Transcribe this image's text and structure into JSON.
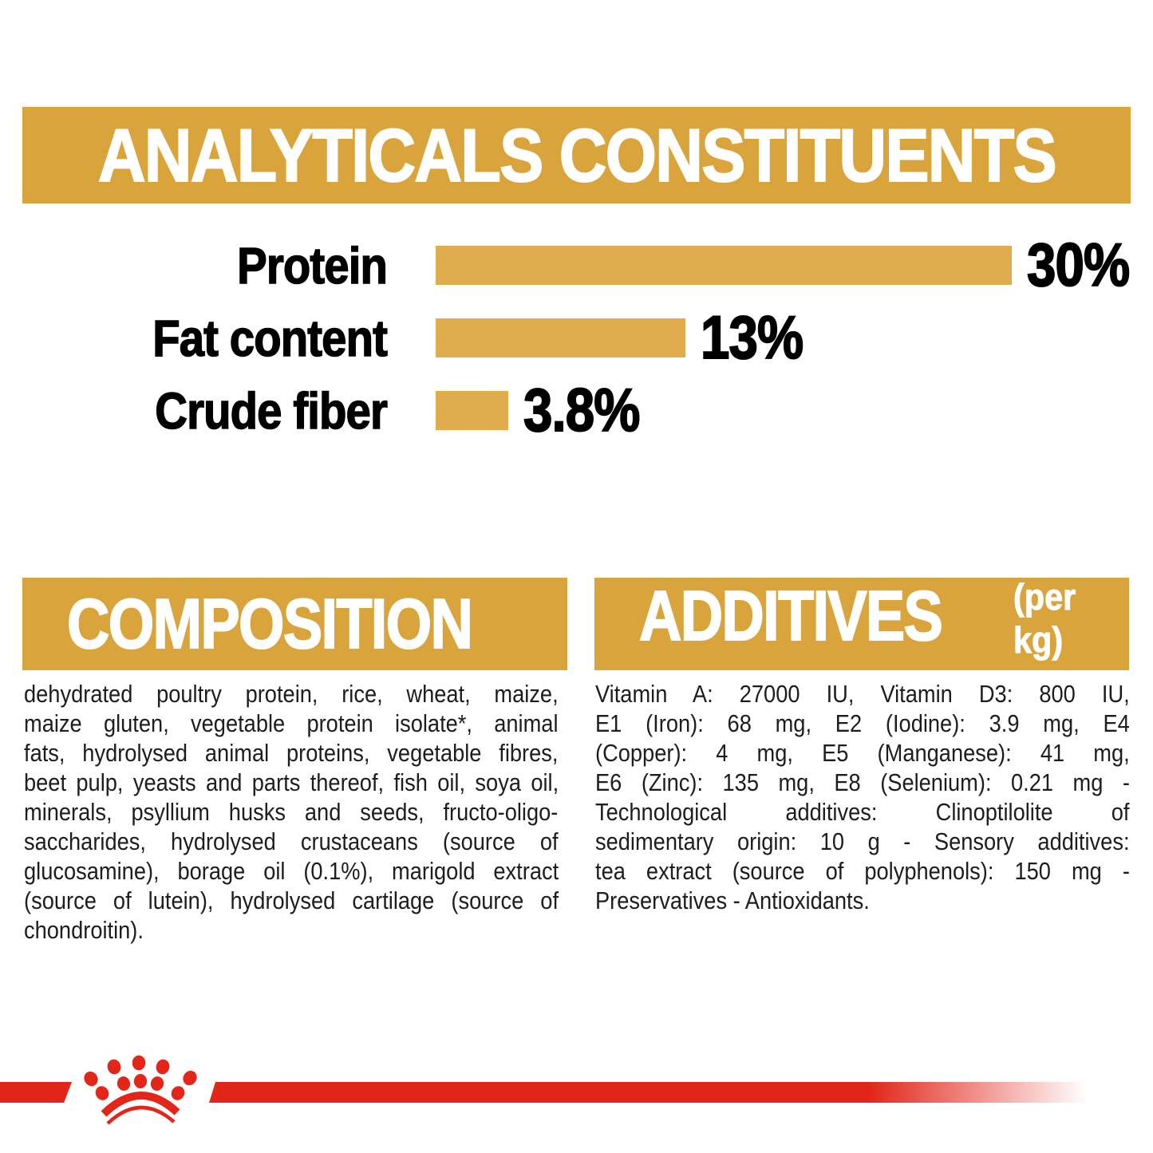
{
  "header": {
    "title": "ANALYTICALS CONSTITUENTS"
  },
  "chart_data": {
    "type": "bar",
    "orientation": "horizontal",
    "title": "ANALYTICALS CONSTITUENTS",
    "categories": [
      "Protein",
      "Fat content",
      "Crude fiber"
    ],
    "values": [
      30,
      13,
      3.8
    ],
    "value_labels": [
      "30%",
      "13%",
      "3.8%"
    ],
    "unit": "%",
    "xlim": [
      0,
      30
    ],
    "grid": false,
    "legend": false,
    "bar_color": "#E0AC4D"
  },
  "sections": {
    "composition": {
      "heading": "COMPOSITION",
      "lines": [
        "dehydrated poultry protein, rice, wheat, maize,",
        "maize gluten, vegetable protein isolate*, animal",
        "fats, hydrolysed animal proteins, vegetable fibres,",
        "beet pulp, yeasts and parts thereof, fish oil, soya oil,",
        "minerals, psyllium husks and seeds, fructo-oligo-",
        "saccharides, hydrolysed crustaceans (source of",
        "glucosamine), borage oil (0.1%), marigold extract",
        "(source of lutein), hydrolysed cartilage (source of",
        "chondroitin)."
      ]
    },
    "additives": {
      "heading": "ADDITIVES",
      "heading_suffix": "(per kg)",
      "lines": [
        "Vitamin A: 27000 IU, Vitamin D3: 800 IU,",
        "E1 (Iron): 68 mg, E2 (Iodine): 3.9 mg, E4",
        "(Copper): 4 mg, E5 (Manganese): 41 mg,",
        "E6 (Zinc): 135 mg, E8 (Selenium): 0.21 mg -",
        "Technological additives: Clinoptilolite of",
        "sedimentary origin: 10 g - Sensory additives:",
        "tea extract (source of polyphenols): 150 mg -",
        "Preservatives - Antioxidants."
      ]
    }
  },
  "footer": {
    "brand_mark": "royal-canin-crown"
  },
  "colors": {
    "gold_header": "#D9A43C",
    "gold_bars": "#E0AC4D",
    "red": "#E2271A",
    "ink": "#1D1D1B",
    "black": "#000000",
    "white": "#FFFFFF"
  }
}
